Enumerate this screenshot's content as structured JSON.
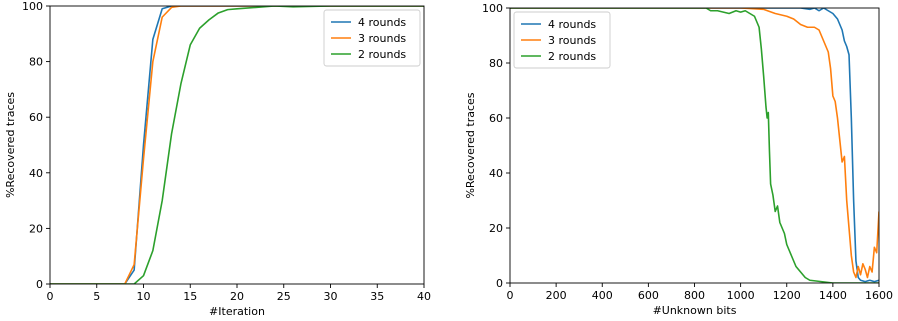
{
  "chart_data": [
    {
      "type": "line",
      "title": "",
      "xlabel": "#Iteration",
      "ylabel": "%Recovered traces",
      "xlim": [
        0,
        40
      ],
      "ylim": [
        0,
        100
      ],
      "xticks": [
        0,
        5,
        10,
        15,
        20,
        25,
        30,
        35,
        40
      ],
      "yticks": [
        0,
        20,
        40,
        60,
        80,
        100
      ],
      "grid": false,
      "legend_position": "top-right",
      "series": [
        {
          "name": "4 rounds",
          "color": "#1f77b4",
          "x": [
            0,
            8,
            9,
            10,
            11,
            12,
            13,
            14,
            15,
            20,
            25,
            30,
            40
          ],
          "y": [
            0,
            0,
            5,
            50,
            88,
            99,
            100,
            100,
            100,
            100,
            100,
            100,
            100
          ]
        },
        {
          "name": "3 rounds",
          "color": "#ff7f0e",
          "x": [
            0,
            8,
            9,
            10,
            11,
            12,
            13,
            14,
            15,
            20,
            25,
            30,
            40
          ],
          "y": [
            0,
            0,
            7,
            45,
            80,
            96,
            99.5,
            100,
            100,
            100,
            100,
            100,
            100
          ]
        },
        {
          "name": "2 rounds",
          "color": "#2ca02c",
          "x": [
            0,
            9,
            10,
            11,
            12,
            13,
            14,
            15,
            16,
            17,
            18,
            19,
            20,
            22,
            24,
            26,
            30,
            40
          ],
          "y": [
            0,
            0,
            3,
            12,
            30,
            54,
            72,
            86,
            92,
            95,
            97.5,
            98.7,
            99,
            99.5,
            100,
            99.7,
            100,
            100
          ]
        }
      ]
    },
    {
      "type": "line",
      "title": "",
      "xlabel": "#Unknown bits",
      "ylabel": "%Recovered traces",
      "xlim": [
        0,
        1600
      ],
      "ylim": [
        0,
        100
      ],
      "xticks": [
        0,
        200,
        400,
        600,
        800,
        1000,
        1200,
        1400,
        1600
      ],
      "yticks": [
        0,
        20,
        40,
        60,
        80,
        100
      ],
      "grid": false,
      "legend_position": "top-left",
      "series": [
        {
          "name": "4 rounds",
          "color": "#1f77b4",
          "x": [
            0,
            1200,
            1260,
            1300,
            1320,
            1340,
            1360,
            1380,
            1400,
            1420,
            1440,
            1450,
            1460,
            1470,
            1480,
            1490,
            1500,
            1510,
            1520,
            1540,
            1560,
            1580,
            1600
          ],
          "y": [
            100,
            100,
            100,
            99.5,
            100,
            99,
            100,
            99,
            98,
            96,
            92,
            88,
            86,
            83,
            60,
            30,
            8,
            2,
            1,
            0.5,
            1,
            0.5,
            1
          ]
        },
        {
          "name": "3 rounds",
          "color": "#ff7f0e",
          "x": [
            0,
            1000,
            1100,
            1150,
            1200,
            1230,
            1260,
            1290,
            1320,
            1340,
            1360,
            1380,
            1390,
            1400,
            1410,
            1420,
            1430,
            1440,
            1450,
            1460,
            1470,
            1480,
            1490,
            1500,
            1510,
            1520,
            1530,
            1540,
            1550,
            1560,
            1570,
            1580,
            1590,
            1600
          ],
          "y": [
            100,
            100,
            99.5,
            98,
            97,
            96,
            94,
            93,
            93,
            92,
            88,
            84,
            78,
            68,
            66,
            60,
            52,
            44,
            46,
            30,
            20,
            10,
            4,
            2,
            6,
            3,
            7,
            5,
            2,
            6,
            4,
            13,
            11,
            26
          ]
        },
        {
          "name": "2 rounds",
          "color": "#2ca02c",
          "x": [
            0,
            850,
            870,
            900,
            950,
            980,
            1000,
            1020,
            1040,
            1060,
            1080,
            1090,
            1100,
            1110,
            1115,
            1120,
            1125,
            1130,
            1140,
            1150,
            1160,
            1170,
            1180,
            1190,
            1200,
            1210,
            1220,
            1240,
            1260,
            1280,
            1300,
            1350,
            1400,
            1500,
            1600
          ],
          "y": [
            100,
            100,
            99,
            99,
            98,
            99,
            98.5,
            99,
            98,
            97,
            93,
            85,
            75,
            64,
            60,
            62,
            48,
            36,
            32,
            26,
            28,
            22,
            20,
            18,
            14,
            12,
            10,
            6,
            4,
            2,
            1,
            0.5,
            0,
            0,
            0
          ]
        }
      ]
    }
  ]
}
